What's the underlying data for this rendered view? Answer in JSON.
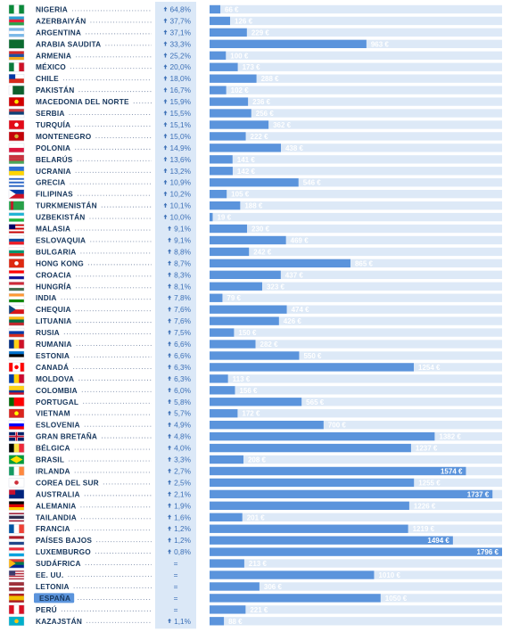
{
  "chart_data": {
    "type": "bar",
    "orientation": "horizontal",
    "unit": "€",
    "colors": {
      "bar": "#5b94dc",
      "bar_track": "#dde9f7",
      "percent_column_bg": "#dbe8f7",
      "country_text": "#16365c",
      "percent_text": "#3b6fb6",
      "highlight": "#5b94dc"
    },
    "highlighted_category": "ESPAÑA",
    "rows": [
      {
        "country": "NIGERIA",
        "change": "64,8%",
        "value": 66,
        "flag": "nigeria-flag"
      },
      {
        "country": "AZERBAIYÁN",
        "change": "37,7%",
        "value": 126,
        "flag": "azerbaijan-flag"
      },
      {
        "country": "ARGENTINA",
        "change": "37,1%",
        "value": 229,
        "flag": "argentina-flag"
      },
      {
        "country": "ARABIA SAUDITA",
        "change": "33,3%",
        "value": 963,
        "flag": "saudi-arabia-flag"
      },
      {
        "country": "ARMENIA",
        "change": "25,2%",
        "value": 100,
        "flag": "armenia-flag"
      },
      {
        "country": "MÉXICO",
        "change": "20,0%",
        "value": 173,
        "flag": "mexico-flag"
      },
      {
        "country": "CHILE",
        "change": "18,0%",
        "value": 288,
        "flag": "chile-flag"
      },
      {
        "country": "PAKISTÁN",
        "change": "16,7%",
        "value": 102,
        "flag": "pakistan-flag"
      },
      {
        "country": "MACEDONIA DEL NORTE",
        "change": "15,9%",
        "value": 236,
        "flag": "north-macedonia-flag"
      },
      {
        "country": "SERBIA",
        "change": "15,5%",
        "value": 256,
        "flag": "serbia-flag"
      },
      {
        "country": "TURQUÍA",
        "change": "15,1%",
        "value": 362,
        "flag": "turkey-flag"
      },
      {
        "country": "MONTENEGRO",
        "change": "15,0%",
        "value": 222,
        "flag": "montenegro-flag"
      },
      {
        "country": "POLONIA",
        "change": "14,9%",
        "value": 438,
        "flag": "poland-flag"
      },
      {
        "country": "BELARÚS",
        "change": "13,6%",
        "value": 141,
        "flag": "belarus-flag"
      },
      {
        "country": "UCRANIA",
        "change": "13,2%",
        "value": 142,
        "flag": "ukraine-flag"
      },
      {
        "country": "GRECIA",
        "change": "10,9%",
        "value": 546,
        "flag": "greece-flag"
      },
      {
        "country": "FILIPINAS",
        "change": "10,2%",
        "value": 105,
        "flag": "philippines-flag"
      },
      {
        "country": "TURKMENISTÁN",
        "change": "10,1%",
        "value": 188,
        "flag": "turkmenistan-flag"
      },
      {
        "country": "UZBEKISTÁN",
        "change": "10,0%",
        "value": 19,
        "flag": "uzbekistan-flag"
      },
      {
        "country": "MALASIA",
        "change": "9,1%",
        "value": 230,
        "flag": "malaysia-flag"
      },
      {
        "country": "ESLOVAQUIA",
        "change": "9,1%",
        "value": 469,
        "flag": "slovakia-flag"
      },
      {
        "country": "BULGARIA",
        "change": "8,8%",
        "value": 242,
        "flag": "bulgaria-flag"
      },
      {
        "country": "HONG KONG",
        "change": "8,7%",
        "value": 865,
        "flag": "hong-kong-flag"
      },
      {
        "country": "CROACIA",
        "change": "8,3%",
        "value": 437,
        "flag": "croatia-flag"
      },
      {
        "country": "HUNGRÍA",
        "change": "8,1%",
        "value": 323,
        "flag": "hungary-flag"
      },
      {
        "country": "INDIA",
        "change": "7,8%",
        "value": 79,
        "flag": "india-flag"
      },
      {
        "country": "CHEQUIA",
        "change": "7,6%",
        "value": 474,
        "flag": "czechia-flag"
      },
      {
        "country": "LITUANIA",
        "change": "7,6%",
        "value": 426,
        "flag": "lithuania-flag"
      },
      {
        "country": "RUSIA",
        "change": "7,5%",
        "value": 150,
        "flag": "russia-flag"
      },
      {
        "country": "RUMANIA",
        "change": "6,6%",
        "value": 282,
        "flag": "romania-flag"
      },
      {
        "country": "ESTONIA",
        "change": "6,6%",
        "value": 550,
        "flag": "estonia-flag"
      },
      {
        "country": "CANADÁ",
        "change": "6,3%",
        "value": 1254,
        "flag": "canada-flag"
      },
      {
        "country": "MOLDOVA",
        "change": "6,3%",
        "value": 113,
        "flag": "moldova-flag"
      },
      {
        "country": "COLOMBIA",
        "change": "6,0%",
        "value": 156,
        "flag": "colombia-flag"
      },
      {
        "country": "PORTUGAL",
        "change": "5,8%",
        "value": 565,
        "flag": "portugal-flag"
      },
      {
        "country": "VIETNAM",
        "change": "5,7%",
        "value": 172,
        "flag": "vietnam-flag"
      },
      {
        "country": "ESLOVENIA",
        "change": "4,9%",
        "value": 700,
        "flag": "slovenia-flag"
      },
      {
        "country": "GRAN BRETAÑA",
        "change": "4,8%",
        "value": 1382,
        "flag": "uk-flag"
      },
      {
        "country": "BÉLGICA",
        "change": "4,0%",
        "value": 1237,
        "flag": "belgium-flag"
      },
      {
        "country": "BRASIL",
        "change": "3,3%",
        "value": 208,
        "flag": "brazil-flag"
      },
      {
        "country": "IRLANDA",
        "change": "2,7%",
        "value": 1574,
        "flag": "ireland-flag"
      },
      {
        "country": "COREA DEL SUR",
        "change": "2,5%",
        "value": 1255,
        "flag": "south-korea-flag"
      },
      {
        "country": "AUSTRALIA",
        "change": "2,1%",
        "value": 1737,
        "flag": "australia-flag"
      },
      {
        "country": "ALEMANIA",
        "change": "1,9%",
        "value": 1226,
        "flag": "germany-flag"
      },
      {
        "country": "TAILANDIA",
        "change": "1,6%",
        "value": 201,
        "flag": "thailand-flag"
      },
      {
        "country": "FRANCIA",
        "change": "1,2%",
        "value": 1219,
        "flag": "france-flag"
      },
      {
        "country": "PAÍSES BAJOS",
        "change": "1,2%",
        "value": 1494,
        "flag": "netherlands-flag"
      },
      {
        "country": "LUXEMBURGO",
        "change": "0,8%",
        "value": 1796,
        "flag": "luxembourg-flag"
      },
      {
        "country": "SUDÁFRICA",
        "change": "=",
        "value": 213,
        "flag": "south-africa-flag"
      },
      {
        "country": "EE. UU.",
        "change": "=",
        "value": 1010,
        "flag": "usa-flag"
      },
      {
        "country": "LETONIA",
        "change": "=",
        "value": 306,
        "flag": "latvia-flag"
      },
      {
        "country": "ESPAÑA",
        "change": "=",
        "value": 1050,
        "flag": "spain-flag"
      },
      {
        "country": "PERÚ",
        "change": "=",
        "value": 221,
        "flag": "peru-flag"
      },
      {
        "country": "KAZAJSTÁN",
        "change": "1,1%",
        "value": 88,
        "flag": "kazakhstan-flag"
      }
    ],
    "change_direction_icon": "arrow-up-icon",
    "xlim": [
      0,
      1796
    ]
  }
}
